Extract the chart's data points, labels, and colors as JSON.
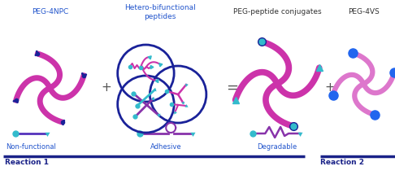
{
  "bg_color": "#ffffff",
  "magenta": "#cc33aa",
  "light_magenta": "#dd77cc",
  "dark_blue": "#1a2299",
  "mid_blue": "#3355bb",
  "bright_blue": "#2266ee",
  "teal": "#33bbcc",
  "blue_label": "#2255cc",
  "dark_navy": "#1a2288",
  "labels": {
    "peg4npc": "PEG-4NPC",
    "hetero": "Hetero-bifunctional\npeptides",
    "conjugates": "PEG-peptide conjugates",
    "peg4vs": "PEG-4VS",
    "non_functional": "Non-functional",
    "adhesive": "Adhesive",
    "degradable": "Degradable",
    "reaction1": "Reaction 1",
    "reaction2": "Reaction 2"
  },
  "figsize": [
    4.86,
    2.15
  ],
  "dpi": 100
}
